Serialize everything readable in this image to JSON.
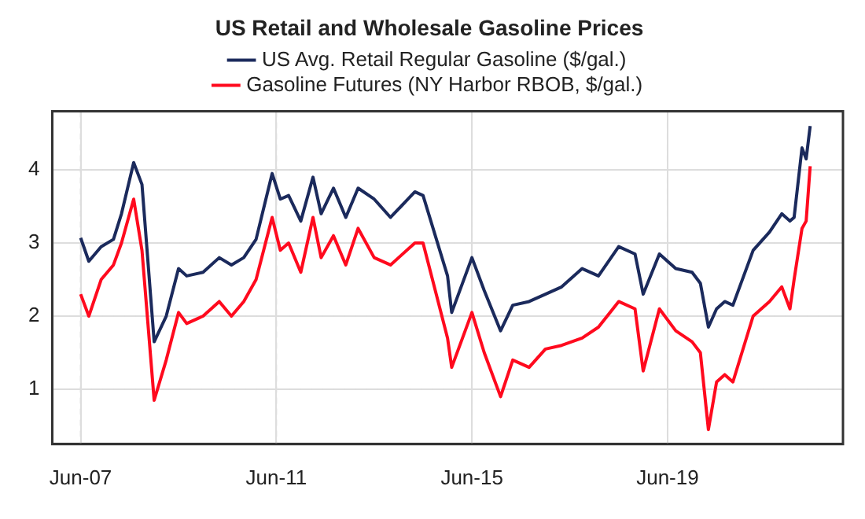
{
  "chart_data": {
    "type": "line",
    "title": "US Retail and Wholesale Gasoline Prices",
    "x": [
      "2007-06",
      "2007-08",
      "2007-11",
      "2008-02",
      "2008-04",
      "2008-07",
      "2008-09",
      "2008-12",
      "2009-03",
      "2009-06",
      "2009-08",
      "2009-12",
      "2010-04",
      "2010-07",
      "2010-10",
      "2011-01",
      "2011-05",
      "2011-07",
      "2011-09",
      "2011-12",
      "2012-03",
      "2012-05",
      "2012-08",
      "2012-11",
      "2013-02",
      "2013-06",
      "2013-10",
      "2014-04",
      "2014-06",
      "2014-12",
      "2015-01",
      "2015-06",
      "2015-09",
      "2016-01",
      "2016-04",
      "2016-08",
      "2016-12",
      "2017-04",
      "2017-09",
      "2018-01",
      "2018-06",
      "2018-10",
      "2018-12",
      "2019-04",
      "2019-08",
      "2019-12",
      "2020-02",
      "2020-04",
      "2020-06",
      "2020-08",
      "2020-10",
      "2021-03",
      "2021-07",
      "2021-10",
      "2021-12",
      "2022-01",
      "2022-03",
      "2022-04",
      "2022-05"
    ],
    "series": [
      {
        "name": "US Avg. Retail Regular Gasoline ($/gal.)",
        "color": "#1b2a5c",
        "values": [
          3.07,
          2.75,
          2.95,
          3.05,
          3.4,
          4.1,
          3.8,
          1.65,
          2.0,
          2.65,
          2.55,
          2.6,
          2.8,
          2.7,
          2.8,
          3.05,
          3.95,
          3.6,
          3.65,
          3.3,
          3.9,
          3.4,
          3.75,
          3.35,
          3.75,
          3.6,
          3.35,
          3.7,
          3.65,
          2.55,
          2.05,
          2.8,
          2.35,
          1.8,
          2.15,
          2.2,
          2.3,
          2.4,
          2.65,
          2.55,
          2.95,
          2.85,
          2.3,
          2.85,
          2.65,
          2.6,
          2.45,
          1.85,
          2.1,
          2.2,
          2.15,
          2.9,
          3.15,
          3.4,
          3.3,
          3.35,
          4.3,
          4.15,
          4.6
        ]
      },
      {
        "name": "Gasoline Futures (NY Harbor RBOB, $/gal.)",
        "color": "#ff0a1e",
        "values": [
          2.3,
          2.0,
          2.5,
          2.7,
          3.0,
          3.6,
          2.9,
          0.85,
          1.4,
          2.05,
          1.9,
          2.0,
          2.2,
          2.0,
          2.2,
          2.5,
          3.35,
          2.9,
          3.0,
          2.6,
          3.35,
          2.8,
          3.1,
          2.7,
          3.2,
          2.8,
          2.7,
          3.0,
          3.0,
          1.7,
          1.3,
          2.05,
          1.5,
          0.9,
          1.4,
          1.3,
          1.55,
          1.6,
          1.7,
          1.85,
          2.2,
          2.1,
          1.25,
          2.1,
          1.8,
          1.65,
          1.5,
          0.45,
          1.1,
          1.2,
          1.1,
          2.0,
          2.2,
          2.4,
          2.1,
          2.5,
          3.2,
          3.3,
          4.05
        ]
      }
    ],
    "xlim": [
      "2006-11",
      "2023-01"
    ],
    "xticks": [
      {
        "value": "2007-06",
        "label": "Jun-07"
      },
      {
        "value": "2011-06",
        "label": "Jun-11"
      },
      {
        "value": "2015-06",
        "label": "Jun-15"
      },
      {
        "value": "2019-06",
        "label": "Jun-19"
      }
    ],
    "ylim": [
      0.25,
      4.8
    ],
    "yticks": [
      1,
      2,
      3,
      4
    ],
    "grid": true,
    "legend": "top",
    "line_style": "solid",
    "marker": "none"
  }
}
